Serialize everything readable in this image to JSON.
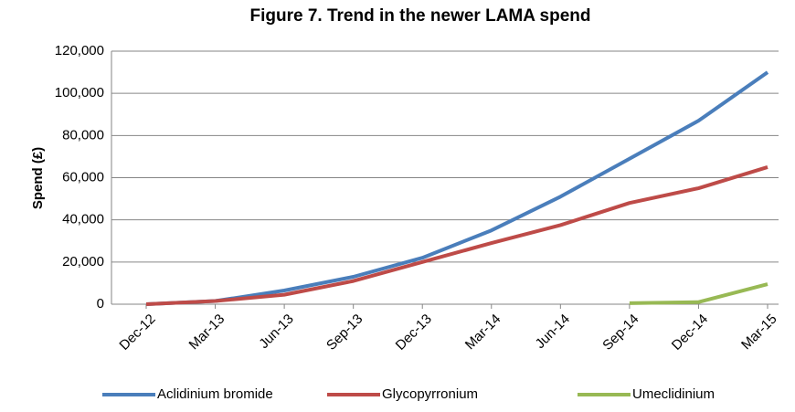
{
  "chart_data": {
    "type": "line",
    "title": "Figure 7. Trend in the newer LAMA spend",
    "y_label": "Spend (£)",
    "categories": [
      "Dec-12",
      "Mar-13",
      "Jun-13",
      "Sep-13",
      "Dec-13",
      "Mar-14",
      "Jun-14",
      "Sep-14",
      "Dec-14",
      "Mar-15"
    ],
    "series": [
      {
        "name": "Aclidinium bromide",
        "color": "#4a7ebb",
        "values": [
          0,
          1500,
          6500,
          13000,
          22000,
          35000,
          51000,
          69000,
          87000,
          110000
        ]
      },
      {
        "name": "Glycopyrronium",
        "color": "#be4b48",
        "values": [
          0,
          1500,
          4500,
          11000,
          20000,
          29000,
          37500,
          48000,
          55000,
          65000
        ]
      },
      {
        "name": "Umeclidinium",
        "color": "#98b954",
        "values": [
          null,
          null,
          null,
          null,
          null,
          null,
          null,
          500,
          1000,
          9500
        ]
      }
    ],
    "ylim": [
      0,
      120000
    ],
    "yticks": [
      0,
      {
        "value": 20000,
        "label": "20,000"
      },
      {
        "value": 40000,
        "label": "40,000"
      },
      {
        "value": 60000,
        "label": "60,000"
      },
      {
        "value": 80000,
        "label": "80,000"
      },
      {
        "value": 100000,
        "label": "100,000"
      },
      {
        "value": 120000,
        "label": "120,000"
      }
    ],
    "grid": true,
    "legend": "bottom"
  }
}
